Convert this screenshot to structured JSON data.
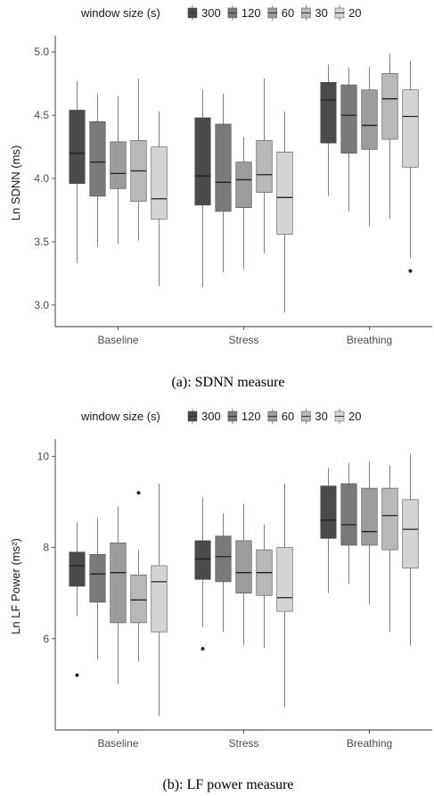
{
  "chart_data": [
    {
      "type": "box",
      "caption": "(a): SDNN measure",
      "ylabel": "Ln SDNN (ms)",
      "legend": {
        "title": "window size (s)",
        "position": "top",
        "entries": [
          "300",
          "120",
          "60",
          "30",
          "20"
        ]
      },
      "colors": [
        "#4a4a4a",
        "#7a7a7a",
        "#9c9c9c",
        "#b8b8b8",
        "#d4d4d4"
      ],
      "categories": [
        "Baseline",
        "Stress",
        "Breathing"
      ],
      "ylim": [
        2.83,
        5.1
      ],
      "yticks": [
        "3.0",
        "3.5",
        "4.0",
        "4.5",
        "5.0"
      ],
      "groups": [
        {
          "category": "Baseline",
          "boxes": [
            {
              "series": "300",
              "min": 3.33,
              "q1": 3.96,
              "median": 4.2,
              "q3": 4.54,
              "max": 4.77,
              "outliers": []
            },
            {
              "series": "120",
              "min": 3.46,
              "q1": 3.86,
              "median": 4.13,
              "q3": 4.45,
              "max": 4.67,
              "outliers": []
            },
            {
              "series": "60",
              "min": 3.48,
              "q1": 3.92,
              "median": 4.04,
              "q3": 4.29,
              "max": 4.65,
              "outliers": []
            },
            {
              "series": "30",
              "min": 3.51,
              "q1": 3.82,
              "median": 4.06,
              "q3": 4.3,
              "max": 4.79,
              "outliers": []
            },
            {
              "series": "20",
              "min": 3.15,
              "q1": 3.68,
              "median": 3.84,
              "q3": 4.25,
              "max": 4.53,
              "outliers": []
            }
          ]
        },
        {
          "category": "Stress",
          "boxes": [
            {
              "series": "300",
              "min": 3.14,
              "q1": 3.79,
              "median": 4.02,
              "q3": 4.48,
              "max": 4.7,
              "outliers": []
            },
            {
              "series": "120",
              "min": 3.26,
              "q1": 3.74,
              "median": 3.97,
              "q3": 4.43,
              "max": 4.67,
              "outliers": []
            },
            {
              "series": "60",
              "min": 3.28,
              "q1": 3.77,
              "median": 3.99,
              "q3": 4.13,
              "max": 4.33,
              "outliers": []
            },
            {
              "series": "30",
              "min": 3.41,
              "q1": 3.89,
              "median": 4.03,
              "q3": 4.3,
              "max": 4.79,
              "outliers": []
            },
            {
              "series": "20",
              "min": 2.94,
              "q1": 3.56,
              "median": 3.85,
              "q3": 4.21,
              "max": 4.53,
              "outliers": []
            }
          ]
        },
        {
          "category": "Breathing",
          "boxes": [
            {
              "series": "300",
              "min": 3.86,
              "q1": 4.28,
              "median": 4.62,
              "q3": 4.76,
              "max": 4.9,
              "outliers": []
            },
            {
              "series": "120",
              "min": 3.74,
              "q1": 4.2,
              "median": 4.5,
              "q3": 4.74,
              "max": 4.88,
              "outliers": []
            },
            {
              "series": "60",
              "min": 3.62,
              "q1": 4.23,
              "median": 4.42,
              "q3": 4.7,
              "max": 4.88,
              "outliers": []
            },
            {
              "series": "30",
              "min": 3.68,
              "q1": 4.31,
              "median": 4.63,
              "q3": 4.83,
              "max": 4.99,
              "outliers": []
            },
            {
              "series": "20",
              "min": 3.37,
              "q1": 4.09,
              "median": 4.49,
              "q3": 4.7,
              "max": 4.93,
              "outliers": [
                3.27
              ]
            }
          ]
        }
      ]
    },
    {
      "type": "box",
      "caption": "(b): LF power measure",
      "ylabel": "Ln LF Power (ms²)",
      "legend": {
        "title": "window size (s)",
        "position": "top",
        "entries": [
          "300",
          "120",
          "60",
          "30",
          "20"
        ]
      },
      "colors": [
        "#4a4a4a",
        "#7a7a7a",
        "#9c9c9c",
        "#b8b8b8",
        "#d4d4d4"
      ],
      "categories": [
        "Baseline",
        "Stress",
        "Breathing"
      ],
      "ylim": [
        4.0,
        10.3
      ],
      "yticks": [
        "6",
        "8",
        "10"
      ],
      "groups": [
        {
          "category": "Baseline",
          "boxes": [
            {
              "series": "300",
              "min": 6.5,
              "q1": 7.15,
              "median": 7.6,
              "q3": 7.9,
              "max": 8.55,
              "outliers": [
                5.2
              ]
            },
            {
              "series": "120",
              "min": 5.55,
              "q1": 6.8,
              "median": 7.42,
              "q3": 7.85,
              "max": 8.65,
              "outliers": []
            },
            {
              "series": "60",
              "min": 5.0,
              "q1": 6.35,
              "median": 7.45,
              "q3": 8.1,
              "max": 8.9,
              "outliers": []
            },
            {
              "series": "30",
              "min": 5.5,
              "q1": 6.35,
              "median": 6.85,
              "q3": 7.4,
              "max": 7.95,
              "outliers": [
                9.2
              ]
            },
            {
              "series": "20",
              "min": 4.3,
              "q1": 6.15,
              "median": 7.25,
              "q3": 7.6,
              "max": 9.4,
              "outliers": []
            }
          ]
        },
        {
          "category": "Stress",
          "boxes": [
            {
              "series": "300",
              "min": 6.25,
              "q1": 7.3,
              "median": 7.75,
              "q3": 8.15,
              "max": 9.1,
              "outliers": [
                5.78
              ]
            },
            {
              "series": "120",
              "min": 6.15,
              "q1": 7.25,
              "median": 7.8,
              "q3": 8.25,
              "max": 8.75,
              "outliers": []
            },
            {
              "series": "60",
              "min": 5.85,
              "q1": 7.0,
              "median": 7.45,
              "q3": 8.15,
              "max": 8.95,
              "outliers": []
            },
            {
              "series": "30",
              "min": 5.8,
              "q1": 6.95,
              "median": 7.45,
              "q3": 7.95,
              "max": 8.5,
              "outliers": []
            },
            {
              "series": "20",
              "min": 4.5,
              "q1": 6.6,
              "median": 6.9,
              "q3": 8.0,
              "max": 9.4,
              "outliers": []
            }
          ]
        },
        {
          "category": "Breathing",
          "boxes": [
            {
              "series": "300",
              "min": 7.0,
              "q1": 8.2,
              "median": 8.6,
              "q3": 9.35,
              "max": 9.75,
              "outliers": []
            },
            {
              "series": "120",
              "min": 7.2,
              "q1": 8.05,
              "median": 8.5,
              "q3": 9.4,
              "max": 9.85,
              "outliers": []
            },
            {
              "series": "60",
              "min": 6.75,
              "q1": 8.05,
              "median": 8.35,
              "q3": 9.3,
              "max": 9.9,
              "outliers": []
            },
            {
              "series": "30",
              "min": 6.15,
              "q1": 7.95,
              "median": 8.7,
              "q3": 9.3,
              "max": 9.8,
              "outliers": []
            },
            {
              "series": "20",
              "min": 5.85,
              "q1": 7.55,
              "median": 8.4,
              "q3": 9.05,
              "max": 10.05,
              "outliers": []
            }
          ]
        }
      ]
    }
  ]
}
